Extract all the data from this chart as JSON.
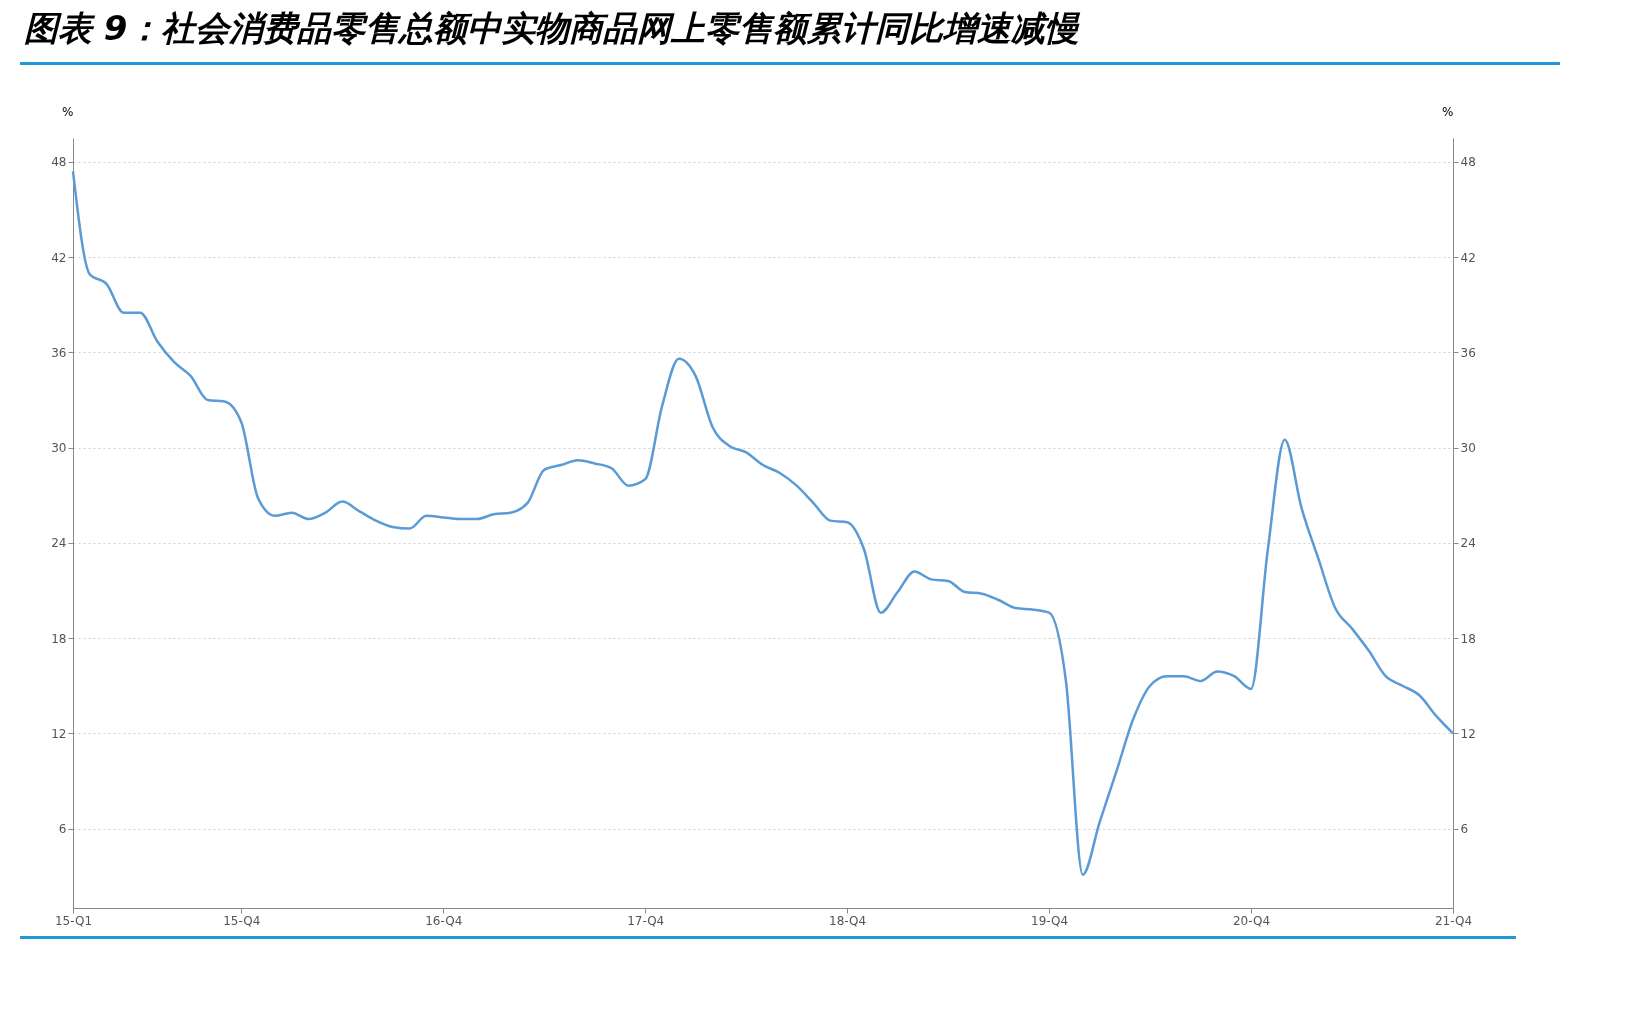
{
  "chart_data": {
    "type": "line",
    "title": "图表 9：社会消费品零售总额中实物商品网上零售额累计同比增速减慢",
    "ylabel": "%",
    "y2label": "%",
    "categories": [
      "15-Q1",
      null,
      null,
      null,
      null,
      null,
      null,
      null,
      null,
      null,
      "15-Q4",
      null,
      null,
      null,
      null,
      null,
      null,
      null,
      null,
      null,
      null,
      null,
      "16-Q4",
      null,
      null,
      null,
      null,
      null,
      null,
      null,
      null,
      null,
      null,
      null,
      "17-Q4",
      null,
      null,
      null,
      null,
      null,
      null,
      null,
      null,
      null,
      null,
      null,
      "18-Q4",
      null,
      null,
      null,
      null,
      null,
      null,
      null,
      null,
      null,
      null,
      null,
      "19-Q4",
      null,
      null,
      null,
      null,
      null,
      null,
      null,
      null,
      null,
      null,
      null,
      "20-Q4",
      null,
      null,
      null,
      null,
      null,
      null,
      null,
      null,
      null,
      null,
      null,
      "21-Q4"
    ],
    "series": [
      {
        "color": "#5b9bd5",
        "values": [
          47.4,
          40.9,
          40.3,
          38.5,
          38.5,
          36.7,
          35.4,
          34.5,
          33.0,
          32.9,
          31.6,
          26.8,
          25.7,
          25.9,
          25.5,
          25.9,
          26.6,
          26.0,
          25.4,
          25.0,
          24.9,
          25.7,
          25.6,
          25.5,
          25.5,
          25.8,
          25.9,
          26.5,
          28.6,
          28.9,
          29.2,
          29.0,
          28.7,
          27.6,
          28.0,
          32.6,
          35.6,
          34.5,
          31.3,
          30.1,
          29.7,
          28.9,
          28.4,
          27.6,
          26.5,
          25.4,
          25.3,
          23.6,
          19.6,
          20.9,
          22.2,
          21.7,
          21.6,
          20.9,
          20.8,
          20.4,
          19.9,
          19.8,
          19.6,
          15.3,
          3.1,
          6.4,
          9.6,
          12.9,
          15.0,
          15.6,
          15.6,
          15.3,
          15.9,
          15.6,
          14.8,
          23.6,
          30.5,
          26.2,
          23.0,
          19.9,
          18.6,
          17.2,
          15.6,
          15.0,
          14.4,
          13.1,
          12.0
        ]
      }
    ],
    "ylim": [
      1,
      49.5
    ],
    "yticks": [
      6,
      12,
      18,
      24,
      30,
      36,
      42,
      48
    ],
    "y2lim": [
      1,
      49.5
    ],
    "y2ticks": [
      6,
      12,
      18,
      24,
      30,
      36,
      42,
      48
    ],
    "grid": "y",
    "line_style": "solid"
  }
}
